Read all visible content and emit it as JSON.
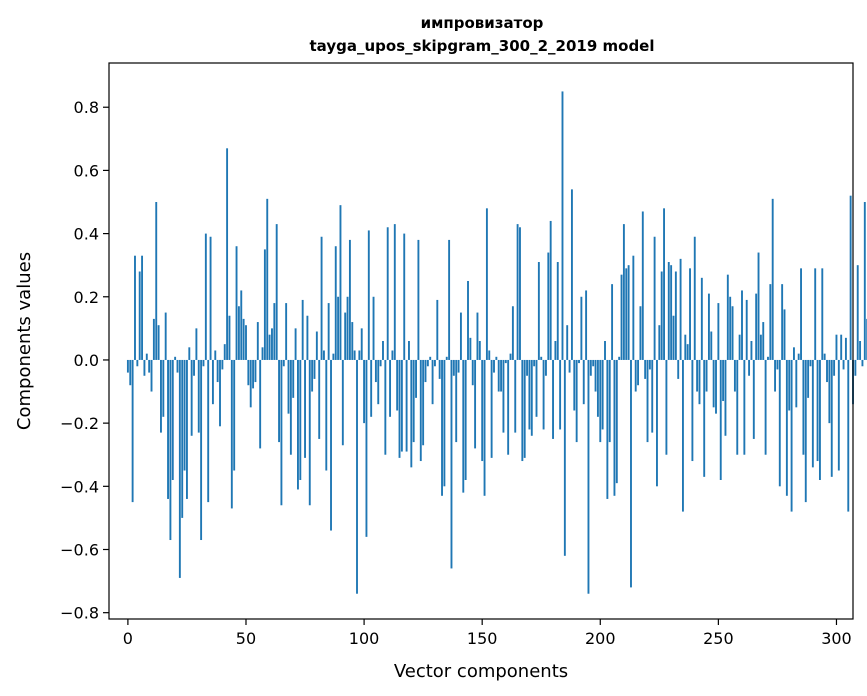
{
  "chart_data": {
    "type": "bar",
    "title_line1": "импровизатор",
    "title_line2": "tayga_upos_skipgram_300_2_2019 model",
    "xlabel": "Vector components",
    "ylabel": "Components values",
    "xlim": [
      -8,
      307
    ],
    "ylim": [
      -0.82,
      0.94
    ],
    "xticks": [
      0,
      50,
      100,
      150,
      200,
      250,
      300
    ],
    "xtick_labels": [
      "0",
      "50",
      "100",
      "150",
      "200",
      "250",
      "300"
    ],
    "yticks": [
      -0.8,
      -0.6,
      -0.4,
      -0.2,
      0.0,
      0.2,
      0.4,
      0.6,
      0.8
    ],
    "ytick_labels": [
      "−0.8",
      "−0.6",
      "−0.4",
      "−0.2",
      "0.0",
      "0.2",
      "0.4",
      "0.6",
      "0.8"
    ],
    "grid": false,
    "bar_color": "#1f77b4",
    "values": [
      -0.04,
      -0.08,
      -0.45,
      0.33,
      -0.02,
      0.28,
      0.33,
      -0.05,
      0.02,
      -0.04,
      -0.1,
      0.13,
      0.5,
      0.11,
      -0.23,
      -0.18,
      0.15,
      -0.44,
      -0.57,
      -0.38,
      0.01,
      -0.04,
      -0.69,
      -0.5,
      -0.35,
      -0.44,
      0.04,
      -0.24,
      -0.05,
      0.1,
      -0.23,
      -0.57,
      -0.02,
      0.4,
      -0.45,
      0.39,
      -0.14,
      0.03,
      -0.07,
      -0.21,
      -0.03,
      0.05,
      0.67,
      0.14,
      -0.47,
      -0.35,
      0.36,
      0.17,
      0.22,
      0.13,
      0.11,
      -0.08,
      -0.15,
      -0.09,
      -0.07,
      0.12,
      -0.28,
      0.04,
      0.35,
      0.51,
      0.08,
      0.1,
      0.18,
      0.43,
      -0.26,
      -0.46,
      -0.02,
      0.18,
      -0.17,
      -0.3,
      -0.12,
      0.1,
      -0.41,
      -0.38,
      0.19,
      -0.31,
      0.14,
      -0.46,
      -0.1,
      -0.06,
      0.09,
      -0.25,
      0.39,
      0.03,
      -0.35,
      0.18,
      -0.54,
      0.02,
      0.36,
      0.2,
      0.49,
      -0.27,
      0.15,
      0.2,
      0.38,
      0.12,
      0.03,
      -0.74,
      0.03,
      0.1,
      -0.2,
      -0.56,
      0.41,
      -0.18,
      0.2,
      -0.07,
      -0.14,
      -0.02,
      0.06,
      -0.3,
      0.42,
      -0.18,
      0.03,
      0.43,
      -0.16,
      -0.31,
      -0.29,
      0.4,
      -0.29,
      0.06,
      -0.34,
      -0.26,
      -0.12,
      0.38,
      -0.32,
      -0.27,
      -0.07,
      -0.02,
      0.01,
      -0.14,
      -0.02,
      0.19,
      -0.06,
      -0.43,
      -0.4,
      0.01,
      0.38,
      -0.66,
      -0.05,
      -0.26,
      -0.04,
      0.15,
      -0.42,
      -0.38,
      0.25,
      0.07,
      -0.08,
      -0.28,
      0.15,
      0.06,
      -0.32,
      -0.43,
      0.48,
      0.03,
      -0.31,
      -0.04,
      0.01,
      -0.1,
      -0.1,
      -0.23,
      -0.01,
      -0.3,
      0.02,
      0.17,
      -0.23,
      0.43,
      0.42,
      -0.32,
      -0.31,
      -0.05,
      -0.22,
      -0.24,
      -0.02,
      -0.18,
      0.31,
      0.01,
      -0.22,
      -0.05,
      0.34,
      0.44,
      -0.25,
      0.06,
      0.31,
      -0.22,
      0.85,
      -0.62,
      0.11,
      -0.04,
      0.54,
      -0.16,
      -0.26,
      -0.01,
      0.2,
      -0.14,
      0.22,
      -0.74,
      -0.05,
      -0.02,
      -0.1,
      -0.18,
      -0.26,
      -0.22,
      0.06,
      -0.44,
      -0.26,
      0.24,
      -0.43,
      -0.39,
      0.01,
      0.27,
      0.43,
      0.29,
      0.3,
      -0.72,
      0.33,
      -0.1,
      -0.08,
      0.17,
      0.47,
      -0.06,
      -0.26,
      -0.03,
      -0.23,
      0.39,
      -0.4,
      0.11,
      0.28,
      0.48,
      -0.3,
      0.31,
      0.3,
      0.14,
      0.28,
      -0.06,
      0.32,
      -0.48,
      0.08,
      0.05,
      0.29,
      -0.32,
      0.39,
      -0.1,
      -0.14,
      0.26,
      -0.37,
      -0.1,
      0.21,
      0.09,
      -0.15,
      -0.17,
      0.18,
      -0.38,
      -0.13,
      -0.24,
      0.27,
      0.2,
      0.17,
      -0.1,
      -0.3,
      0.08,
      0.22,
      -0.3,
      0.19,
      -0.05,
      0.06,
      -0.25,
      0.21,
      0.34,
      0.08,
      0.12,
      -0.3,
      0.01,
      0.24,
      0.51,
      -0.1,
      -0.03,
      -0.4,
      0.24,
      0.16,
      -0.43,
      -0.16,
      -0.48,
      0.04,
      -0.15,
      0.02,
      0.29,
      -0.3,
      -0.45,
      -0.12,
      -0.02,
      -0.34,
      0.29,
      -0.32,
      -0.38,
      0.29,
      0.02,
      -0.07,
      -0.2,
      -0.37,
      -0.05,
      0.08,
      -0.35,
      0.08,
      -0.03,
      0.07,
      -0.48,
      0.52,
      -0.14,
      -0.05,
      0.3,
      0.06,
      -0.02,
      0.5,
      0.13,
      0.05,
      0.08,
      -0.18
    ]
  }
}
